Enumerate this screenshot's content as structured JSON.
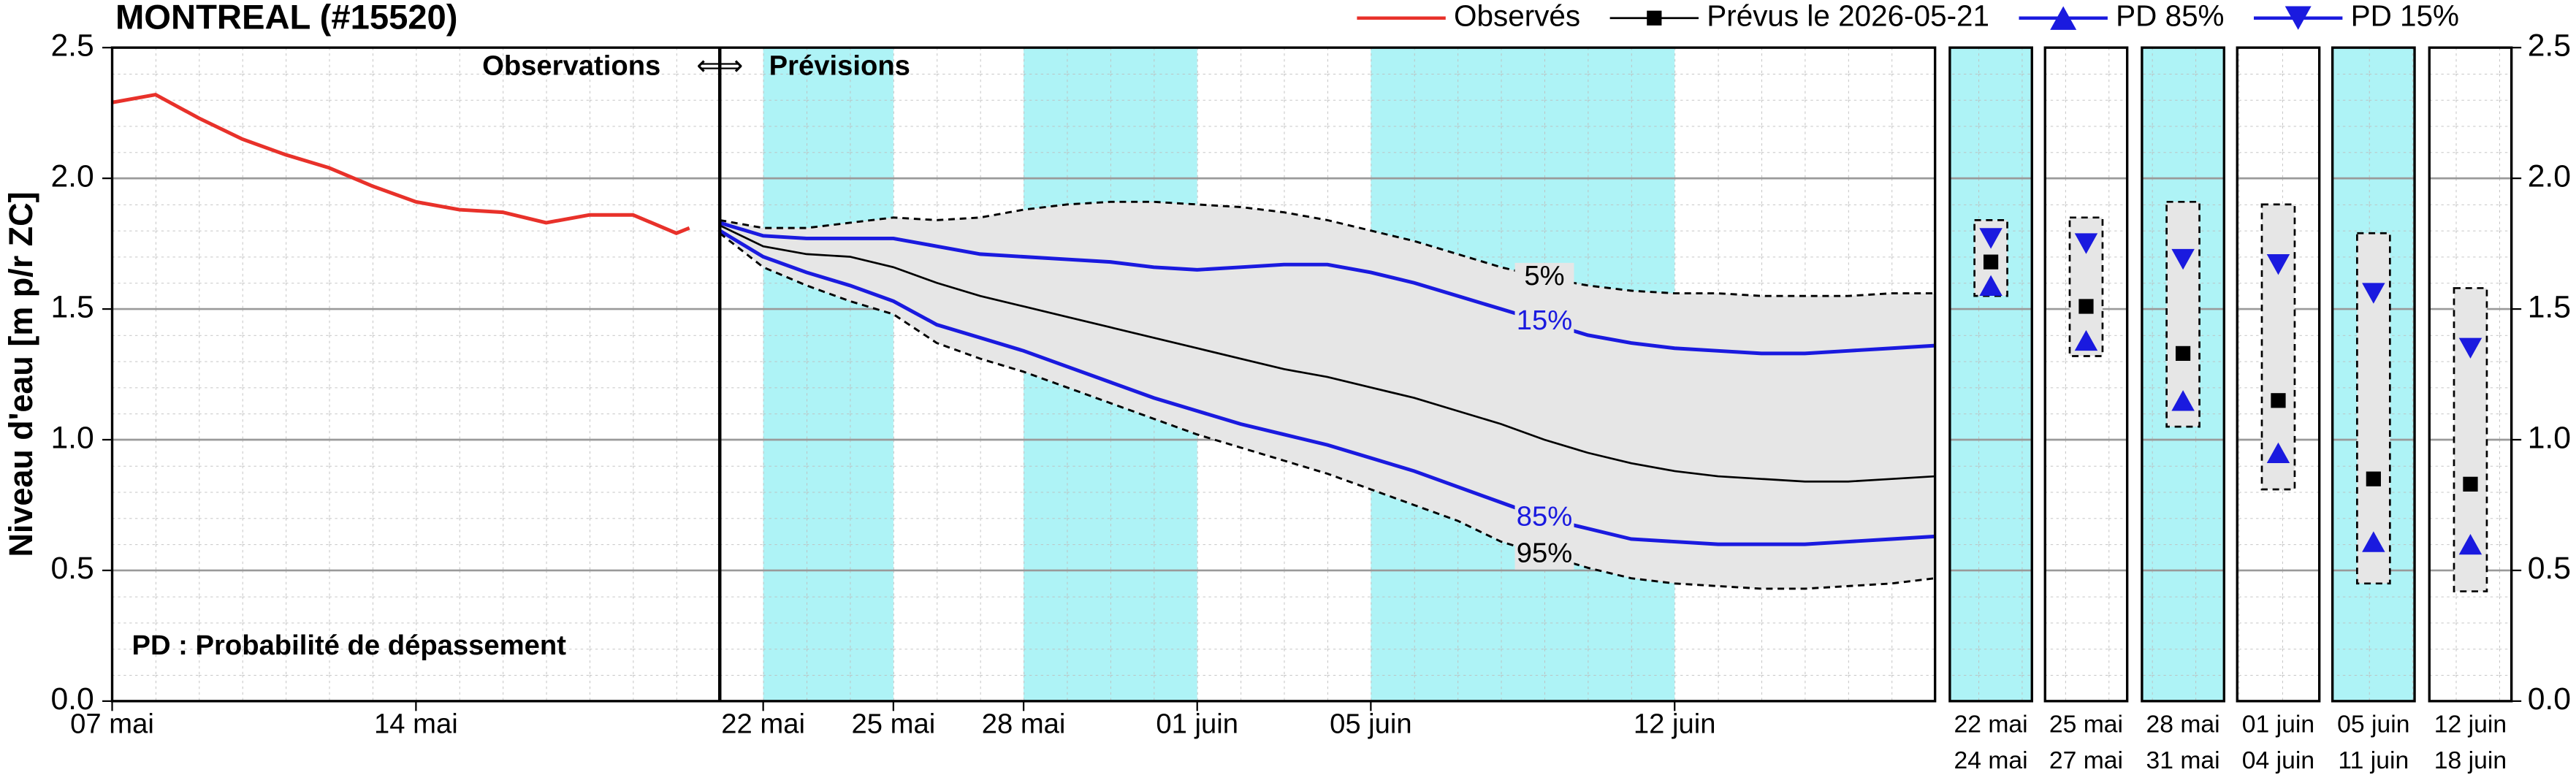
{
  "chart_data": {
    "type": "line",
    "title": "MONTREAL (#15520)",
    "ylabel": "Niveau d'eau [m p/r ZC]",
    "xlim": [
      0,
      42
    ],
    "xticks": [
      {
        "value": 0,
        "label": "07 mai"
      },
      {
        "value": 7,
        "label": "14 mai"
      },
      {
        "value": 15,
        "label": "22 mai"
      },
      {
        "value": 18,
        "label": "25 mai"
      },
      {
        "value": 21,
        "label": "28 mai"
      },
      {
        "value": 25,
        "label": "01 juin"
      },
      {
        "value": 29,
        "label": "05 juin"
      },
      {
        "value": 36,
        "label": "12 juin"
      }
    ],
    "ylim": [
      0,
      2.5
    ],
    "yticks": [
      {
        "value": 0,
        "label": "0.0"
      },
      0.5,
      {
        "value": 1,
        "label": "1.0"
      },
      1.5,
      {
        "value": 2,
        "label": "2.0"
      },
      2.5
    ],
    "grid": true,
    "divider": 14,
    "highlight_ranges": [
      [
        15,
        18
      ],
      [
        21,
        25
      ],
      [
        29,
        36
      ]
    ],
    "annotations": {
      "left": "Observations",
      "arrows": "⇐⇒",
      "right": "Prévisions",
      "note": "PD : Probabilité de dépassement"
    },
    "series": [
      {
        "name": "Observés",
        "color": "#e8312a",
        "x": [
          0,
          1,
          2,
          3,
          4,
          5,
          6,
          7,
          8,
          9,
          10,
          11,
          12,
          13,
          13.3
        ],
        "values": [
          2.29,
          2.32,
          2.23,
          2.15,
          2.09,
          2.04,
          1.97,
          1.91,
          1.88,
          1.87,
          1.83,
          1.86,
          1.86,
          1.79,
          1.81
        ]
      },
      {
        "name": "Prévus le 2026-05-21",
        "color": "#000000",
        "marker": "square",
        "x": [
          14,
          15,
          16,
          17,
          18,
          19,
          20,
          21,
          22,
          23,
          24,
          25,
          26,
          27,
          28,
          29,
          30,
          31,
          32,
          33,
          34,
          35,
          36,
          37,
          38,
          39,
          40,
          41,
          42
        ],
        "values": [
          1.82,
          1.74,
          1.71,
          1.7,
          1.66,
          1.6,
          1.55,
          1.51,
          1.47,
          1.43,
          1.39,
          1.35,
          1.31,
          1.27,
          1.24,
          1.2,
          1.16,
          1.11,
          1.06,
          1.0,
          0.95,
          0.91,
          0.88,
          0.86,
          0.85,
          0.84,
          0.84,
          0.85,
          0.86
        ]
      },
      {
        "name": "PD 85%",
        "label": "85%",
        "color": "#1a1adf",
        "marker": "triangle-up",
        "x": [
          14,
          15,
          16,
          17,
          18,
          19,
          20,
          21,
          22,
          23,
          24,
          25,
          26,
          27,
          28,
          29,
          30,
          31,
          32,
          33,
          34,
          35,
          36,
          37,
          38,
          39,
          40,
          41,
          42
        ],
        "values": [
          1.8,
          1.7,
          1.64,
          1.59,
          1.53,
          1.44,
          1.39,
          1.34,
          1.28,
          1.22,
          1.16,
          1.11,
          1.06,
          1.02,
          0.98,
          0.93,
          0.88,
          0.82,
          0.76,
          0.7,
          0.66,
          0.62,
          0.61,
          0.6,
          0.6,
          0.6,
          0.61,
          0.62,
          0.63
        ]
      },
      {
        "name": "PD 15%",
        "label": "15%",
        "color": "#1a1adf",
        "marker": "triangle-down",
        "x": [
          14,
          15,
          16,
          17,
          18,
          19,
          20,
          21,
          22,
          23,
          24,
          25,
          26,
          27,
          28,
          29,
          30,
          31,
          32,
          33,
          34,
          35,
          36,
          37,
          38,
          39,
          40,
          41,
          42
        ],
        "values": [
          1.83,
          1.78,
          1.77,
          1.77,
          1.77,
          1.74,
          1.71,
          1.7,
          1.69,
          1.68,
          1.66,
          1.65,
          1.66,
          1.67,
          1.67,
          1.64,
          1.6,
          1.55,
          1.5,
          1.45,
          1.4,
          1.37,
          1.35,
          1.34,
          1.33,
          1.33,
          1.34,
          1.35,
          1.36
        ]
      },
      {
        "label": "5%",
        "color": "#000000",
        "dash": true,
        "x": [
          14,
          15,
          16,
          17,
          18,
          19,
          20,
          21,
          22,
          23,
          24,
          25,
          26,
          27,
          28,
          29,
          30,
          31,
          32,
          33,
          34,
          35,
          36,
          37,
          38,
          39,
          40,
          41,
          42
        ],
        "values": [
          1.84,
          1.81,
          1.81,
          1.83,
          1.85,
          1.84,
          1.85,
          1.88,
          1.9,
          1.91,
          1.91,
          1.9,
          1.89,
          1.87,
          1.84,
          1.8,
          1.76,
          1.71,
          1.66,
          1.62,
          1.59,
          1.57,
          1.56,
          1.56,
          1.55,
          1.55,
          1.55,
          1.56,
          1.56
        ]
      },
      {
        "label": "95%",
        "color": "#000000",
        "dash": true,
        "x": [
          14,
          15,
          16,
          17,
          18,
          19,
          20,
          21,
          22,
          23,
          24,
          25,
          26,
          27,
          28,
          29,
          30,
          31,
          32,
          33,
          34,
          35,
          36,
          37,
          38,
          39,
          40,
          41,
          42
        ],
        "values": [
          1.79,
          1.66,
          1.59,
          1.53,
          1.48,
          1.37,
          1.31,
          1.26,
          1.2,
          1.14,
          1.08,
          1.02,
          0.97,
          0.92,
          0.87,
          0.81,
          0.75,
          0.69,
          0.61,
          0.56,
          0.51,
          0.47,
          0.45,
          0.44,
          0.43,
          0.43,
          0.44,
          0.45,
          0.47
        ]
      }
    ],
    "summary": {
      "categories": [
        [
          "22 mai",
          "24 mai"
        ],
        [
          "25 mai",
          "27 mai"
        ],
        [
          "28 mai",
          "31 mai"
        ],
        [
          "01 juin",
          "04 juin"
        ],
        [
          "05 juin",
          "11 juin"
        ],
        [
          "12 juin",
          "18 juin"
        ]
      ],
      "highlight": [
        true,
        false,
        true,
        false,
        true,
        false
      ],
      "box_low": [
        1.55,
        1.32,
        1.05,
        0.81,
        0.45,
        0.42
      ],
      "box_high": [
        1.84,
        1.85,
        1.91,
        1.9,
        1.79,
        1.58
      ],
      "median": [
        1.68,
        1.51,
        1.33,
        1.15,
        0.85,
        0.83
      ],
      "pd85": [
        1.59,
        1.38,
        1.15,
        0.95,
        0.61,
        0.6
      ],
      "pd15": [
        1.77,
        1.75,
        1.69,
        1.67,
        1.56,
        1.35
      ]
    }
  }
}
